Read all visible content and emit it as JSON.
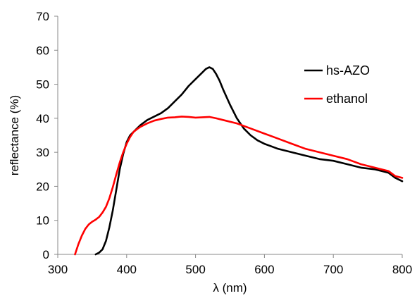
{
  "chart_data": {
    "type": "line",
    "xlabel": "λ (nm)",
    "ylabel": "reflectance (%)",
    "xlim": [
      300,
      800
    ],
    "ylim": [
      0,
      70
    ],
    "xticks": [
      300,
      400,
      500,
      600,
      700,
      800
    ],
    "yticks": [
      0,
      10,
      20,
      30,
      40,
      50,
      60,
      70
    ],
    "grid": false,
    "legend_position": "top-right",
    "series": [
      {
        "name": "hs-AZO",
        "color": "#000000",
        "x": [
          355,
          360,
          365,
          370,
          375,
          380,
          385,
          390,
          395,
          400,
          405,
          410,
          415,
          420,
          430,
          440,
          450,
          460,
          470,
          480,
          490,
          500,
          510,
          515,
          520,
          525,
          530,
          535,
          540,
          550,
          560,
          570,
          580,
          590,
          600,
          620,
          640,
          660,
          680,
          700,
          720,
          740,
          760,
          780,
          790,
          800
        ],
        "y": [
          0,
          0.5,
          1.5,
          4,
          8,
          13,
          19,
          25,
          29.5,
          33,
          35,
          36,
          37,
          38,
          39.5,
          40.5,
          41.5,
          43,
          45,
          47,
          49.5,
          51.5,
          53.5,
          54.5,
          55,
          54.5,
          53,
          51,
          48.5,
          44,
          40,
          37,
          35,
          33.5,
          32.5,
          31,
          30,
          29,
          28,
          27.5,
          26.5,
          25.5,
          25,
          24,
          22.5,
          21.5
        ]
      },
      {
        "name": "ethanol",
        "color": "#ff0000",
        "x": [
          325,
          330,
          335,
          340,
          345,
          350,
          355,
          360,
          365,
          370,
          375,
          380,
          385,
          390,
          395,
          400,
          405,
          410,
          415,
          420,
          430,
          440,
          450,
          460,
          470,
          480,
          490,
          500,
          510,
          520,
          530,
          540,
          560,
          580,
          600,
          620,
          640,
          660,
          680,
          700,
          720,
          740,
          760,
          780,
          790,
          800
        ],
        "y": [
          0,
          3,
          5.5,
          7.5,
          8.8,
          9.6,
          10.2,
          11,
          12.3,
          14,
          16.5,
          19.8,
          23.5,
          27,
          30,
          32.5,
          34.5,
          36,
          36.8,
          37.5,
          38.5,
          39.3,
          39.8,
          40.2,
          40.3,
          40.5,
          40.4,
          40.2,
          40.3,
          40.4,
          40,
          39.5,
          38.5,
          37,
          35.5,
          34,
          32.5,
          31,
          30,
          29,
          28,
          26.5,
          25.5,
          24.5,
          23,
          22.5
        ]
      }
    ]
  }
}
